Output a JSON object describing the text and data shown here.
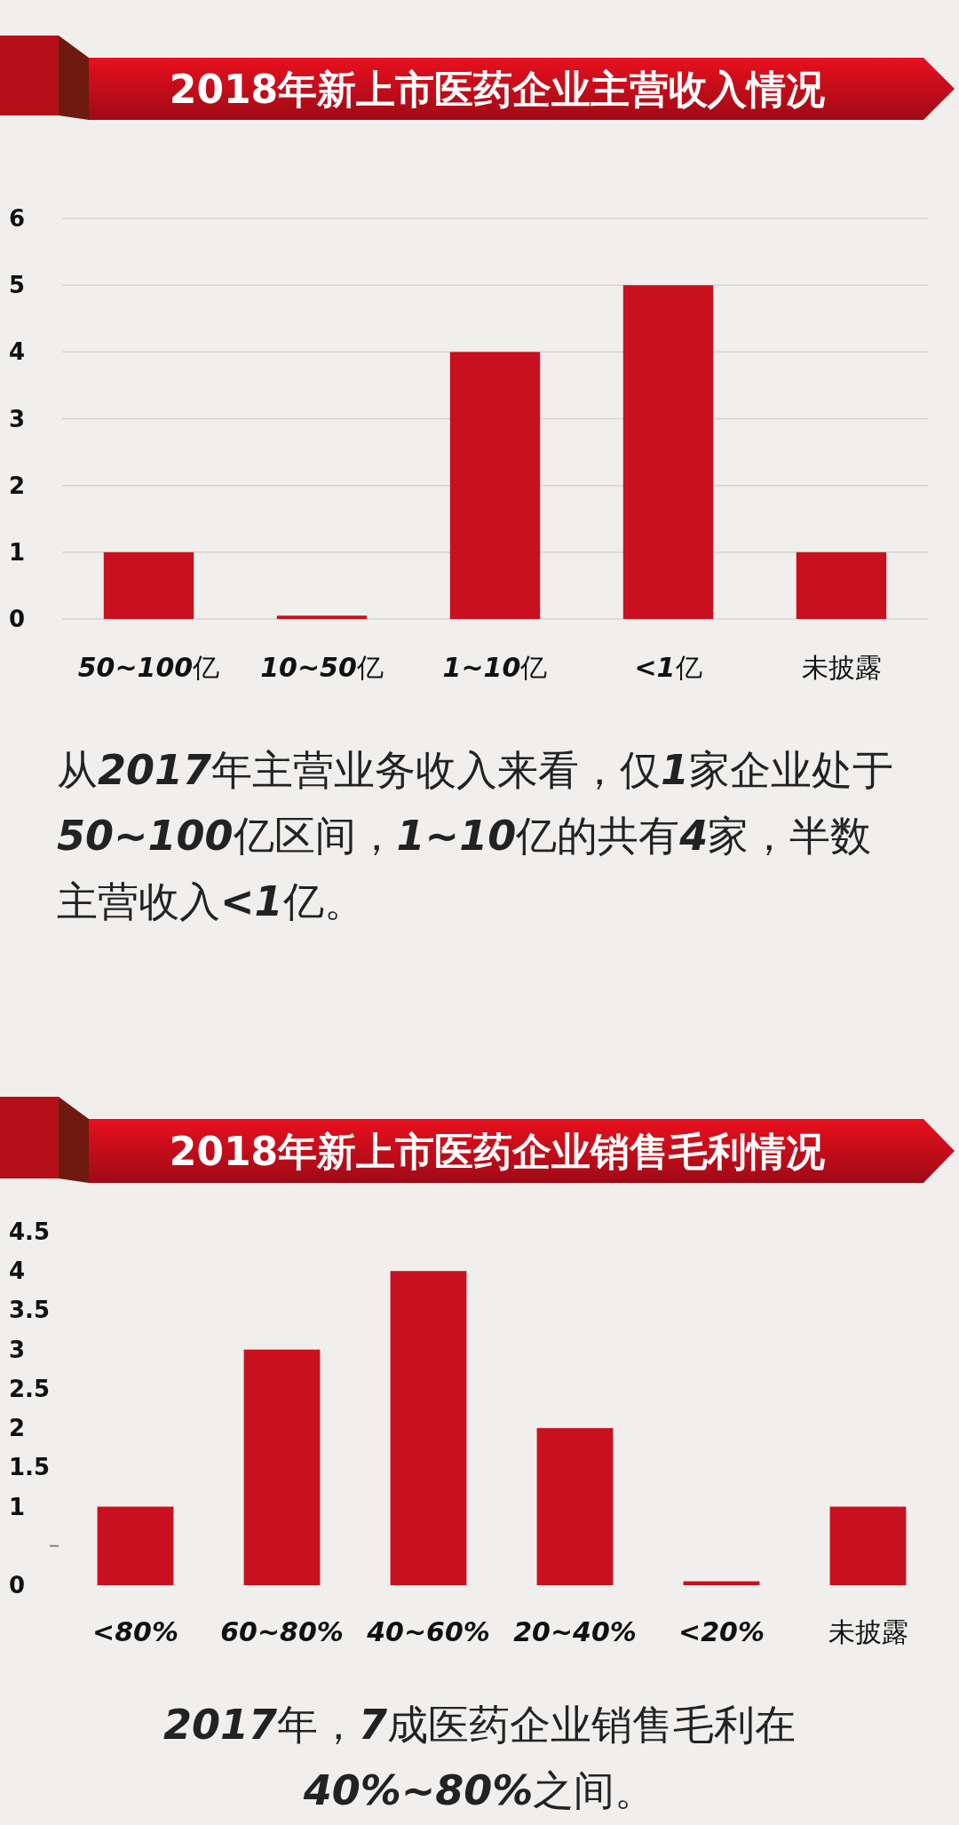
{
  "chart_data": [
    {
      "type": "bar",
      "title": "2018年新上市医药企业主营收入情况",
      "categories": [
        "**50~100**亿",
        "**10~50**亿",
        "**1~10**亿",
        "**<1**亿",
        "未披露"
      ],
      "values": [
        1,
        0.05,
        4,
        5,
        1
      ],
      "color": "#c8101e",
      "ylim": [
        0,
        6
      ],
      "yticks": [
        0,
        1,
        2,
        3,
        4,
        5,
        6
      ],
      "grid": "y",
      "annotations": [
        "从**2017**年主营业务收入来看，仅**1**家企业处于**50~100**亿区间，**1~10**亿的共有**4**家，半数主营收入**<1**亿。"
      ]
    },
    {
      "type": "bar",
      "title": "2018年新上市医药企业销售毛利情况",
      "categories": [
        "**<80%**",
        "**60~80%**",
        "**40~60%**",
        "**20~40%**",
        "**<20%**",
        "未披露"
      ],
      "values": [
        1,
        3,
        4,
        2,
        0.05,
        1
      ],
      "color": "#c8101e",
      "ylim": [
        0,
        4.5
      ],
      "yticks": [
        0,
        {
          "value": 0.5,
          "label": null
        },
        1,
        1.5,
        2,
        2.5,
        3,
        3.5,
        4,
        4.5
      ],
      "annotations": [
        "**2017**年，**7**成医药企业销售毛利在**40%~80%**之间。"
      ]
    }
  ]
}
